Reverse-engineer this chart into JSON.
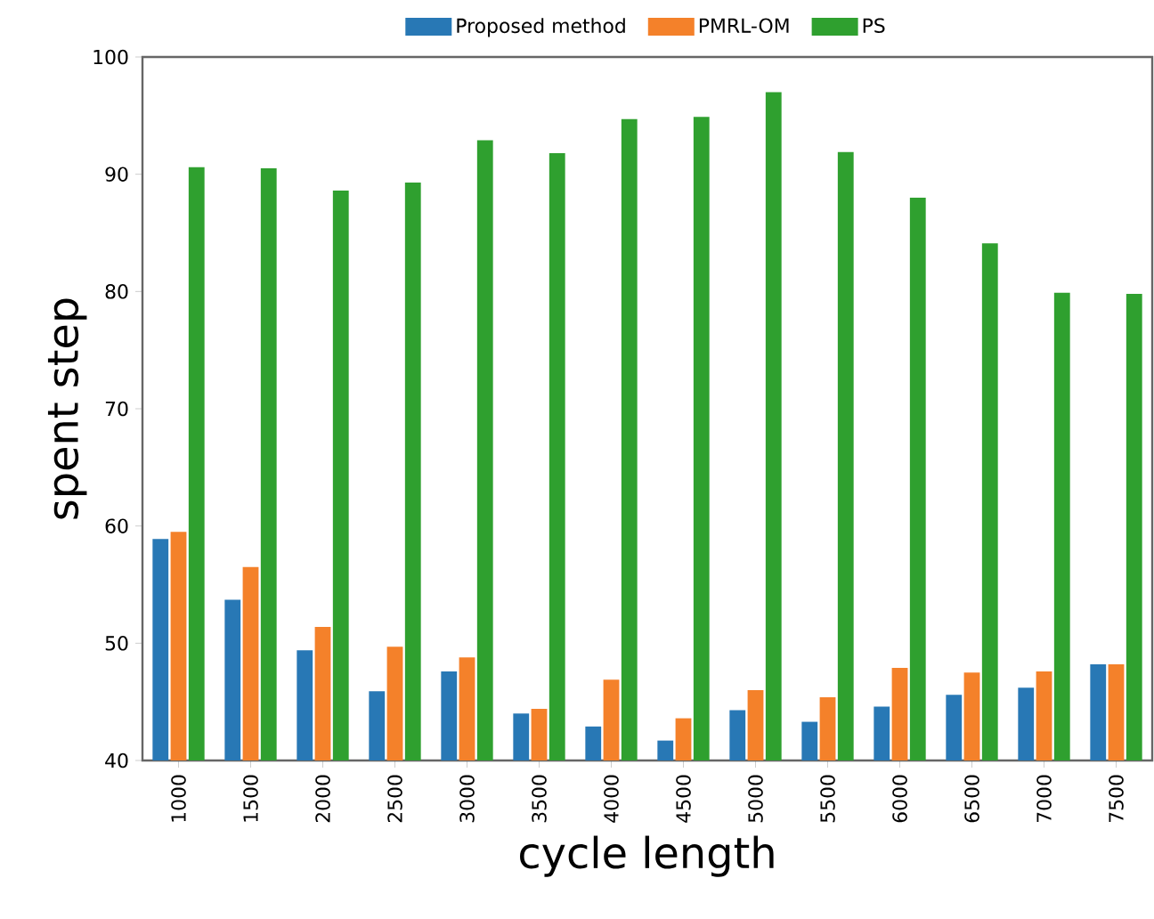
{
  "chart_data": {
    "type": "bar",
    "xlabel": "cycle length",
    "ylabel": "spent step",
    "categories": [
      "1000",
      "1500",
      "2000",
      "2500",
      "3000",
      "3500",
      "4000",
      "4500",
      "5000",
      "5500",
      "6000",
      "6500",
      "7000",
      "7500"
    ],
    "series": [
      {
        "name": "Proposed method",
        "color": "#2878b5",
        "values": [
          58.9,
          53.7,
          49.4,
          45.9,
          47.6,
          44.0,
          42.9,
          41.7,
          44.3,
          43.3,
          44.6,
          45.6,
          46.2,
          48.2
        ]
      },
      {
        "name": "PMRL-OM",
        "color": "#f4812a",
        "values": [
          59.5,
          56.5,
          51.4,
          49.7,
          48.8,
          44.4,
          46.9,
          43.6,
          46.0,
          45.4,
          47.9,
          47.5,
          47.6,
          48.2
        ]
      },
      {
        "name": "PS",
        "color": "#2fa02f",
        "values": [
          90.6,
          90.5,
          88.6,
          89.3,
          92.9,
          91.8,
          94.7,
          94.9,
          97.0,
          91.9,
          88.0,
          84.1,
          79.9,
          79.8
        ]
      }
    ],
    "ylim": [
      40,
      100
    ],
    "yticks": [
      40,
      50,
      60,
      70,
      80,
      90,
      100
    ],
    "legend": "top",
    "grid": false
  }
}
